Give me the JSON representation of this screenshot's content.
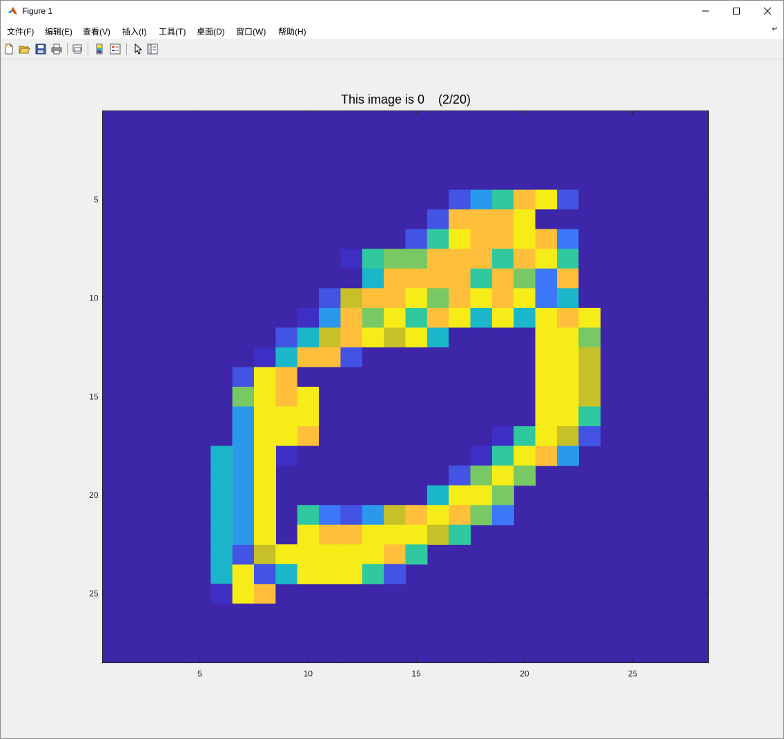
{
  "window": {
    "title": "Figure 1",
    "controls": [
      "minimize",
      "maximize",
      "close"
    ]
  },
  "menu": [
    "文件(F)",
    "编辑(E)",
    "查看(V)",
    "插入(I)",
    "工具(T)",
    "桌面(D)",
    "窗口(W)",
    "帮助(H)"
  ],
  "toolbar": {
    "icons": [
      "new-figure-icon",
      "open-file-icon",
      "save-icon",
      "print-icon",
      "link-axes-icon",
      "insert-colorbar-icon",
      "insert-legend-icon",
      "edit-plot-icon",
      "property-inspector-icon"
    ]
  },
  "plot": {
    "title": "This image is 0    (2/20)"
  },
  "chart_data": {
    "type": "heatmap",
    "title": "This image is 0    (2/20)",
    "colormap": "parula",
    "x_ticks": [
      5,
      10,
      15,
      20,
      25
    ],
    "y_ticks": [
      5,
      10,
      15,
      20,
      25
    ],
    "xlim": [
      0.5,
      28.5
    ],
    "ylim": [
      0.5,
      28.5
    ],
    "y_reversed": true,
    "rows": [
      "",
      "",
      "",
      "",
      "16:2469b2",
      "15:2999a",
      "14:26a99a93",
      "11:167799969a6",
      "11:05999969739",
      "10:2899a79b9a35",
      "9:1497a69a5a5",
      "8:2589a8b5",
      "7:15992",
      "6:2a9",
      "6:7a9b",
      "6:6aac",
      "6:6aa9",
      "5:5a91",
      "5:5a8",
      "5:5a5",
      "5:5a4",
      "5:5a9",
      "5:5a99",
      "5:5a9",
      "5:1a9",
      "",
      "",
      ""
    ]
  }
}
